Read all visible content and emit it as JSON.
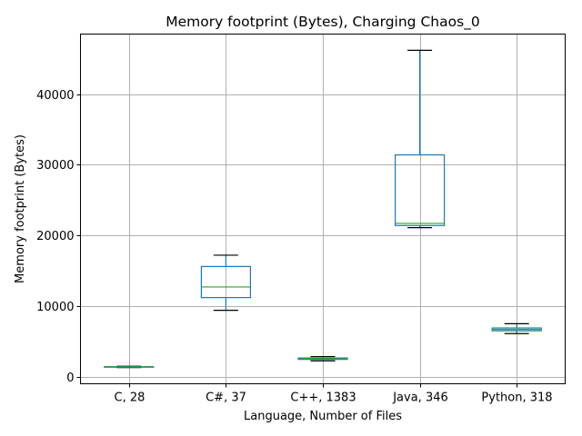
{
  "chart_data": {
    "type": "box",
    "title": "Memory footprint (Bytes), Charging Chaos_0",
    "xlabel": "Language, Number of Files",
    "ylabel": "Memory footprint (Bytes)",
    "ylim": [
      -1000,
      48500
    ],
    "yticks": [
      0,
      10000,
      20000,
      30000,
      40000
    ],
    "grid": true,
    "colors": {
      "box": "#1f77b4",
      "median": "#2ca02c",
      "cap": "#000000"
    },
    "categories": [
      "C, 28",
      "C#, 37",
      "C++, 1383",
      "Java, 346",
      "Python, 318"
    ],
    "boxes": [
      {
        "whislo": 1300,
        "q1": 1350,
        "med": 1380,
        "q3": 1420,
        "whishi": 1480
      },
      {
        "whislo": 9400,
        "q1": 11200,
        "med": 12700,
        "q3": 15600,
        "whishi": 17200
      },
      {
        "whislo": 2250,
        "q1": 2450,
        "med": 2550,
        "q3": 2650,
        "whishi": 2850
      },
      {
        "whislo": 21100,
        "q1": 21400,
        "med": 21700,
        "q3": 31400,
        "whishi": 46200
      },
      {
        "whislo": 6100,
        "q1": 6500,
        "med": 6700,
        "q3": 6900,
        "whishi": 7500
      }
    ]
  }
}
